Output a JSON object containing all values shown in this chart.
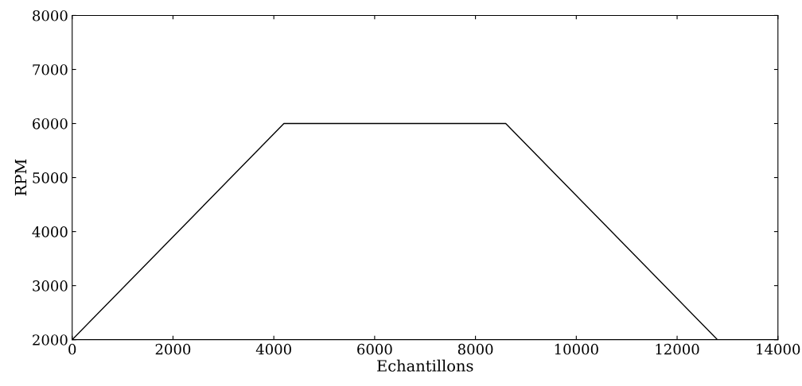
{
  "chart_data": {
    "type": "line",
    "xlabel": "Echantillons",
    "ylabel": "RPM",
    "x": [
      0,
      4200,
      8600,
      12800
    ],
    "series": [
      {
        "color": "#000000",
        "values": [
          2000,
          6000,
          6000,
          2000
        ]
      }
    ],
    "xlim": [
      0,
      14000
    ],
    "xticks": [
      0,
      2000,
      4000,
      6000,
      8000,
      10000,
      12000,
      14000
    ],
    "ylim": [
      2000,
      8000
    ],
    "yticks": [
      2000,
      3000,
      4000,
      5000,
      6000,
      7000,
      8000
    ],
    "grid": false,
    "marker": "none",
    "line_style": "solid"
  }
}
